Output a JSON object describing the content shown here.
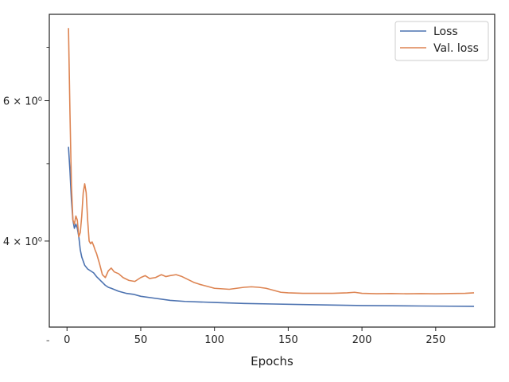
{
  "chart_data": {
    "type": "line",
    "title": "",
    "xlabel": "Epochs",
    "ylabel": "",
    "yscale": "log",
    "xlim": [
      -12,
      290
    ],
    "ylim": [
      3.12,
      7.7
    ],
    "x_ticks": [
      0,
      50,
      100,
      150,
      200,
      250
    ],
    "y_ticks": [
      {
        "value": 4,
        "label": "4 × 10⁰"
      },
      {
        "value": 6,
        "label": "6 × 10⁰"
      }
    ],
    "y_minor_ticks": [
      3,
      5,
      7
    ],
    "grid": false,
    "legend": {
      "position": "top-right"
    },
    "series": [
      {
        "name": "Loss",
        "color": "#4c72b0",
        "points": [
          [
            1,
            5.25
          ],
          [
            2,
            4.9
          ],
          [
            3,
            4.5
          ],
          [
            4,
            4.25
          ],
          [
            5,
            4.15
          ],
          [
            6,
            4.2
          ],
          [
            7,
            4.15
          ],
          [
            8,
            4.05
          ],
          [
            9,
            3.9
          ],
          [
            10,
            3.82
          ],
          [
            12,
            3.73
          ],
          [
            14,
            3.69
          ],
          [
            16,
            3.67
          ],
          [
            18,
            3.65
          ],
          [
            20,
            3.61
          ],
          [
            22,
            3.58
          ],
          [
            24,
            3.55
          ],
          [
            26,
            3.52
          ],
          [
            28,
            3.5
          ],
          [
            30,
            3.49
          ],
          [
            35,
            3.46
          ],
          [
            40,
            3.44
          ],
          [
            45,
            3.43
          ],
          [
            50,
            3.41
          ],
          [
            60,
            3.39
          ],
          [
            70,
            3.37
          ],
          [
            80,
            3.36
          ],
          [
            90,
            3.355
          ],
          [
            100,
            3.35
          ],
          [
            120,
            3.34
          ],
          [
            140,
            3.335
          ],
          [
            160,
            3.33
          ],
          [
            180,
            3.325
          ],
          [
            200,
            3.32
          ],
          [
            220,
            3.318
          ],
          [
            240,
            3.316
          ],
          [
            260,
            3.314
          ],
          [
            276,
            3.313
          ]
        ]
      },
      {
        "name": "Val. loss",
        "color": "#dd8452",
        "points": [
          [
            1,
            7.4
          ],
          [
            2,
            5.8
          ],
          [
            3,
            4.7
          ],
          [
            4,
            4.25
          ],
          [
            5,
            4.2
          ],
          [
            6,
            4.3
          ],
          [
            7,
            4.25
          ],
          [
            8,
            4.05
          ],
          [
            9,
            4.1
          ],
          [
            10,
            4.3
          ],
          [
            11,
            4.6
          ],
          [
            12,
            4.72
          ],
          [
            13,
            4.6
          ],
          [
            14,
            4.25
          ],
          [
            15,
            4.0
          ],
          [
            16,
            3.97
          ],
          [
            17,
            3.99
          ],
          [
            18,
            3.95
          ],
          [
            19,
            3.9
          ],
          [
            20,
            3.86
          ],
          [
            22,
            3.75
          ],
          [
            24,
            3.63
          ],
          [
            26,
            3.6
          ],
          [
            28,
            3.67
          ],
          [
            30,
            3.7
          ],
          [
            32,
            3.66
          ],
          [
            35,
            3.64
          ],
          [
            38,
            3.6
          ],
          [
            42,
            3.57
          ],
          [
            46,
            3.56
          ],
          [
            50,
            3.6
          ],
          [
            53,
            3.62
          ],
          [
            56,
            3.59
          ],
          [
            60,
            3.6
          ],
          [
            64,
            3.63
          ],
          [
            67,
            3.61
          ],
          [
            70,
            3.62
          ],
          [
            74,
            3.63
          ],
          [
            78,
            3.61
          ],
          [
            82,
            3.58
          ],
          [
            86,
            3.55
          ],
          [
            90,
            3.53
          ],
          [
            95,
            3.51
          ],
          [
            100,
            3.49
          ],
          [
            105,
            3.485
          ],
          [
            110,
            3.48
          ],
          [
            115,
            3.49
          ],
          [
            120,
            3.5
          ],
          [
            125,
            3.505
          ],
          [
            130,
            3.5
          ],
          [
            135,
            3.49
          ],
          [
            140,
            3.47
          ],
          [
            145,
            3.45
          ],
          [
            150,
            3.445
          ],
          [
            160,
            3.44
          ],
          [
            170,
            3.44
          ],
          [
            180,
            3.44
          ],
          [
            190,
            3.445
          ],
          [
            195,
            3.45
          ],
          [
            200,
            3.44
          ],
          [
            210,
            3.436
          ],
          [
            220,
            3.438
          ],
          [
            230,
            3.435
          ],
          [
            240,
            3.437
          ],
          [
            250,
            3.435
          ],
          [
            260,
            3.438
          ],
          [
            270,
            3.44
          ],
          [
            276,
            3.445
          ]
        ]
      }
    ]
  }
}
